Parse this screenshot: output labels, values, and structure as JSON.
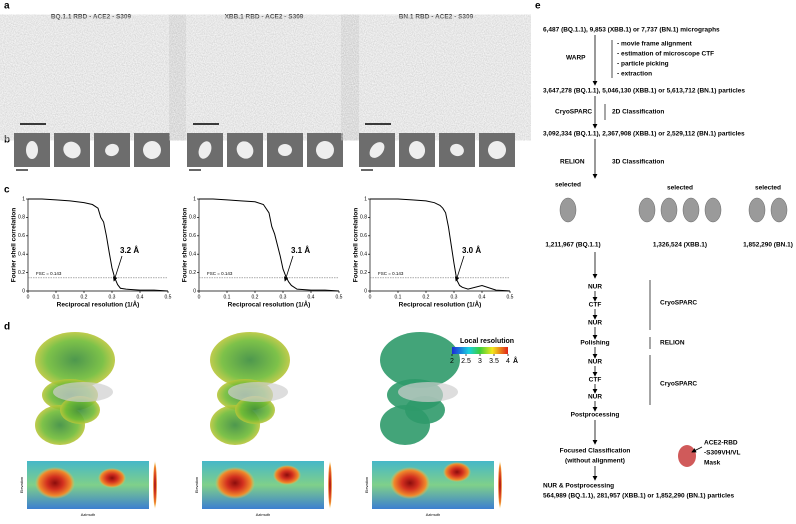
{
  "panel_labels": [
    "a",
    "b",
    "c",
    "d",
    "e"
  ],
  "micrographs": [
    {
      "title": "BQ.1.1 RBD - ACE2 - S309"
    },
    {
      "title": "XBB.1 RBD - ACE2 - S309"
    },
    {
      "title": "BN.1 RBD - ACE2 - S309"
    }
  ],
  "fsc": {
    "type": "line",
    "ylabel": "Fourier shell correlation",
    "xlabel": "Reciprocal resolution (1/Å)",
    "xlim": [
      0,
      0.5
    ],
    "ylim": [
      0,
      1
    ],
    "xticks": [
      0,
      0.1,
      0.2,
      0.3,
      0.4,
      0.5
    ],
    "yticks": [
      0,
      0.2,
      0.4,
      0.6,
      0.8,
      1
    ],
    "threshold": 0.143,
    "threshold_label": "FSC = 0.143",
    "x": [
      0,
      0.02,
      0.05,
      0.1,
      0.15,
      0.2,
      0.23,
      0.25,
      0.26,
      0.27,
      0.28,
      0.29,
      0.3,
      0.31,
      0.32,
      0.33,
      0.35,
      0.4,
      0.45,
      0.5
    ],
    "plots": [
      {
        "resolution_label": "3.2 Å",
        "values": [
          1,
          1,
          1,
          0.99,
          0.98,
          0.96,
          0.94,
          0.9,
          0.8,
          0.75,
          0.6,
          0.42,
          0.25,
          0.14,
          0.07,
          0.03,
          0.02,
          0.01,
          0.01,
          0
        ]
      },
      {
        "resolution_label": "3.1 Å",
        "values": [
          1,
          1,
          1,
          0.99,
          0.98,
          0.97,
          0.94,
          0.85,
          0.7,
          0.62,
          0.5,
          0.38,
          0.24,
          0.16,
          0.1,
          0.06,
          0.02,
          0.01,
          0.01,
          0
        ]
      },
      {
        "resolution_label": "3.0 Å",
        "values": [
          1,
          1,
          1,
          1,
          0.99,
          0.98,
          0.96,
          0.93,
          0.9,
          0.85,
          0.7,
          0.5,
          0.3,
          0.12,
          0.06,
          0.04,
          0.02,
          0.06,
          0.01,
          0
        ]
      }
    ]
  },
  "local_resolution": {
    "title": "Local resolution",
    "lim": [
      2,
      4
    ],
    "ticks": [
      2,
      2.5,
      3,
      3.5,
      4
    ],
    "unit": "Å"
  },
  "heatmap_axes": {
    "x": "Azimuth",
    "y": "Elevation"
  },
  "workflow": {
    "micrographs": "6,487 (BQ.1.1), 9,853 (XBB.1) or 7,737 (BN.1) micrographs",
    "warp": "WARP",
    "warp_steps": [
      "- movie frame alignment",
      "- estimation of microscope CTF",
      "- particle picking",
      "- extraction"
    ],
    "particles_1": "3,647,278 (BQ.1.1), 5,046,130 (XBB.1) or 5,613,712 (BN.1) particles",
    "software_2d": "CryoSPARC",
    "class_2d": "2D Classification",
    "particles_2": "3,092,334 (BQ.1.1), 2,367,908 (XBB.1) or 2,529,112 (BN.1)  particles",
    "software_3d": "RELION",
    "class_3d": "3D Classification",
    "selected": [
      {
        "label": "selected",
        "count": "1,211,967 (BQ.1.1)"
      },
      {
        "label": "selected",
        "count": "1,326,524 (XBB.1)"
      },
      {
        "label": "selected",
        "count": "1,852,290 (BN.1)"
      }
    ],
    "steps": [
      "NUR",
      "CTF",
      "NUR",
      "Polishing",
      "NUR",
      "CTF",
      "NUR",
      "Postprocessing"
    ],
    "step_software": [
      "CryoSPARC",
      "RELION",
      "CryoSPARC"
    ],
    "focused": [
      "Focused Classification",
      "(without alignment)"
    ],
    "mask": [
      "ACE2-RBD",
      "-S309VH/VL",
      "Mask"
    ],
    "final": [
      "NUR & Postprocessing",
      "564,989 (BQ.1.1), 281,957 (XBB.1) or 1,852,290 (BN.1) particles"
    ]
  }
}
